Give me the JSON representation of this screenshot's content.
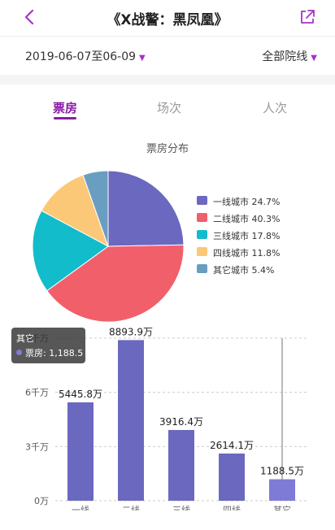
{
  "header": {
    "title": "《X战警：黑凤凰》",
    "back_icon": "chevron-left-icon",
    "share_icon": "share-icon",
    "accent_color": "#a832c8"
  },
  "filters": {
    "date_range": "2019-06-07至06-09",
    "cinema": "全部院线"
  },
  "tabs": [
    {
      "label": "票房",
      "active": true
    },
    {
      "label": "场次",
      "active": false
    },
    {
      "label": "人次",
      "active": false
    }
  ],
  "chart_data": [
    {
      "type": "pie",
      "title": "票房分布",
      "slices": [
        {
          "label": "一线城市",
          "value": 24.7,
          "display": "一线城市 24.7%",
          "color": "#6b68bf"
        },
        {
          "label": "二线城市",
          "value": 40.3,
          "display": "二线城市 40.3%",
          "color": "#f15f6b"
        },
        {
          "label": "三线城市",
          "value": 17.8,
          "display": "三线城市 17.8%",
          "color": "#12bccb"
        },
        {
          "label": "四线城市",
          "value": 11.8,
          "display": "四线城市 11.8%",
          "color": "#fbc877"
        },
        {
          "label": "其它城市",
          "value": 5.4,
          "display": "其它城市 5.4%",
          "color": "#6a9ec1"
        }
      ],
      "legend_position": "right"
    },
    {
      "type": "bar",
      "categories": [
        "一线",
        "二线",
        "三线",
        "四线",
        "其它"
      ],
      "values": [
        5445.8,
        8893.9,
        3916.4,
        2614.1,
        1188.5
      ],
      "data_labels": [
        "5445.8万",
        "8893.9万",
        "3916.4万",
        "2614.1万",
        "1188.5万"
      ],
      "y_ticks": [
        "0万",
        "3千万",
        "6千万",
        "9千万"
      ],
      "y_tick_values": [
        0,
        3000,
        6000,
        9000
      ],
      "ylim": [
        0,
        9000
      ],
      "grid": true,
      "bar_color": "#6b68bf",
      "highlight_bar_color": "#7e7bd6",
      "highlighted_category": "其它",
      "tooltip": {
        "title": "其它",
        "text": "票房: 1,188.5"
      }
    }
  ]
}
